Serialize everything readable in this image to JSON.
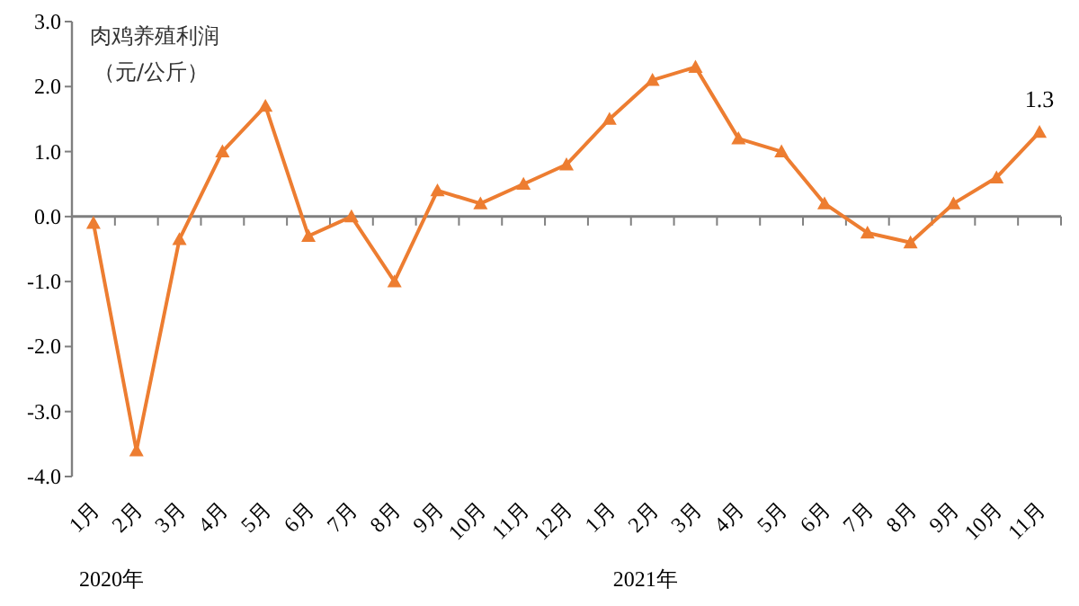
{
  "chart_data": {
    "type": "line",
    "title": "肉鸡养殖利润",
    "subtitle": "（元/公斤）",
    "categories": [
      "1月",
      "2月",
      "3月",
      "4月",
      "5月",
      "6月",
      "7月",
      "8月",
      "9月",
      "10月",
      "11月",
      "12月",
      "1月",
      "2月",
      "3月",
      "4月",
      "5月",
      "6月",
      "7月",
      "8月",
      "9月",
      "10月",
      "11月"
    ],
    "series": [
      {
        "color": "#ed7d31",
        "values": [
          -0.1,
          -3.6,
          -0.35,
          1.0,
          1.7,
          -0.3,
          0.0,
          -1.0,
          0.4,
          0.2,
          0.5,
          0.8,
          1.5,
          2.1,
          2.3,
          1.2,
          1.0,
          0.2,
          -0.25,
          -0.4,
          0.2,
          0.6,
          1.3
        ],
        "value_labels": [
          null,
          null,
          null,
          null,
          null,
          null,
          null,
          null,
          null,
          null,
          null,
          null,
          null,
          null,
          null,
          null,
          null,
          null,
          null,
          null,
          null,
          null,
          "1.3"
        ]
      }
    ],
    "ylim": [
      -4,
      3
    ],
    "yticks": [
      {
        "value": -4,
        "label": "-4.0"
      },
      {
        "value": -3,
        "label": "-3.0"
      },
      {
        "value": -2,
        "label": "-2.0"
      },
      {
        "value": -1,
        "label": "-1.0"
      },
      {
        "value": 0,
        "label": "0.0"
      },
      {
        "value": 1,
        "label": "1.0"
      },
      {
        "value": 2,
        "label": "2.0"
      },
      {
        "value": 3,
        "label": "3.0"
      }
    ],
    "annotations": [
      "2020年",
      "2021年"
    ],
    "marker": "triangle",
    "line_style": "solid"
  }
}
